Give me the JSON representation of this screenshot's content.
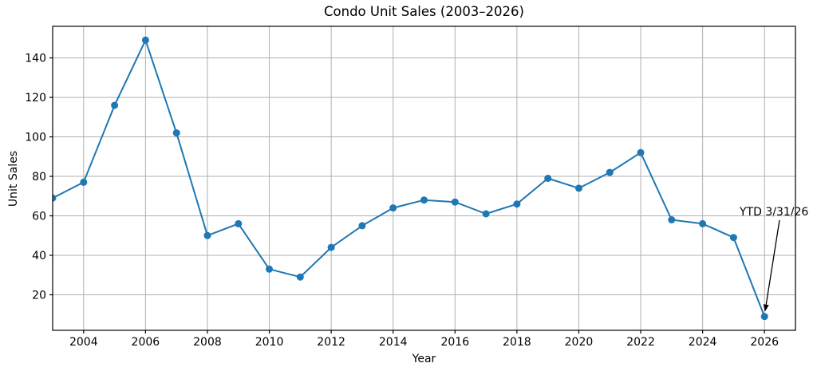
{
  "figure": {
    "background": "#ffffff"
  },
  "chart_data": {
    "type": "line",
    "title": "Condo Unit Sales (2003–2026)",
    "xlabel": "Year",
    "ylabel": "Unit Sales",
    "x": [
      2003,
      2004,
      2005,
      2006,
      2007,
      2008,
      2009,
      2010,
      2011,
      2012,
      2013,
      2014,
      2015,
      2016,
      2017,
      2018,
      2019,
      2020,
      2021,
      2022,
      2023,
      2024,
      2025,
      2026
    ],
    "series": [
      {
        "name": "Unit Sales",
        "values": [
          69,
          77,
          116,
          149,
          102,
          50,
          56,
          33,
          29,
          44,
          55,
          64,
          68,
          67,
          61,
          66,
          79,
          74,
          82,
          92,
          58,
          56,
          49,
          9
        ],
        "color": "#1f77b4",
        "marker": "circle"
      }
    ],
    "xlim": [
      2003,
      2027
    ],
    "ylim": [
      2,
      156
    ],
    "x_ticks": [
      2004,
      2006,
      2008,
      2010,
      2012,
      2014,
      2016,
      2018,
      2020,
      2022,
      2024,
      2026
    ],
    "y_ticks": [
      20,
      40,
      60,
      80,
      100,
      120,
      140
    ],
    "grid": true,
    "legend_position": "none",
    "annotation": {
      "text": "YTD 3/31/26",
      "target_x": 2026,
      "target_y": 9,
      "arrow_color": "#000000"
    },
    "colors": {
      "line": "#1f77b4",
      "grid": "#b0b0b0",
      "spine": "#000000",
      "text": "#000000"
    }
  }
}
